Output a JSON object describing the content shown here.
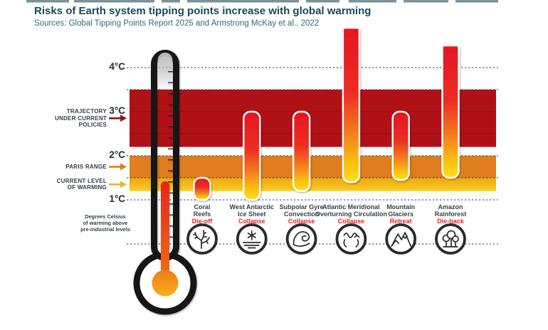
{
  "header": {
    "title": "Risks of Earth system tipping points increase with global warming",
    "subtitle": "Sources: Global Tipping Points Report 2025 and Armstrong McKay et al., 2022"
  },
  "chart_data": {
    "type": "bar",
    "subtype": "floating-range-bars",
    "title": "Risks of Earth system tipping points increase with global warming",
    "subtitle": "Sources: Global Tipping Points Report 2025 and Armstrong McKay et al., 2022",
    "y_axis": {
      "unit": "°C",
      "min": 0,
      "max": 5,
      "ticks": [
        {
          "label": "4°C",
          "value": 4
        },
        {
          "label": "3°C",
          "value": 3
        },
        {
          "label": "2°C",
          "value": 2
        },
        {
          "label": "1°C",
          "value": 1
        }
      ],
      "note": "Degrees Celsius\nof warming above\npre-industrial levels"
    },
    "gridlines_c": [
      4,
      3.5,
      2,
      1.5,
      1,
      0
    ],
    "bands": [
      {
        "id": "trajectory",
        "label": "TRAJECTORY\nUNDER CURRENT\nPOLICIES",
        "range_c": [
          2.2,
          3.5
        ],
        "color": "#b01117",
        "arrow_color": "#9c1016"
      },
      {
        "id": "paris-range",
        "label": "PARIS RANGE",
        "range_c": [
          1.5,
          2.0
        ],
        "color": "#e07d1f",
        "arrow_color": "#e07d1f"
      },
      {
        "id": "current-warming",
        "label": "CURRENT LEVEL\nOF WARMING",
        "range_c": [
          1.2,
          1.5
        ],
        "color": "#f2b118",
        "arrow_color": "#eab62a"
      }
    ],
    "tipping_points": [
      {
        "name": "Coral\nReefs",
        "impact": "Die-off",
        "range_c": [
          1.0,
          1.5
        ],
        "open_top": false,
        "icon": "coral-icon"
      },
      {
        "name": "West Antarctic\nIce Sheet",
        "impact": "Collapse",
        "range_c": [
          1.0,
          3.0
        ],
        "open_top": false,
        "icon": "ice-sheet-icon"
      },
      {
        "name": "Subpolar Gyre\nConvection",
        "impact": "Collapse",
        "range_c": [
          1.2,
          3.0
        ],
        "open_top": false,
        "icon": "wave-icon"
      },
      {
        "name": "Atlantic Meridional\nOverturning Circulation",
        "impact": "Collapse",
        "range_c": [
          1.4,
          4.9
        ],
        "open_top": true,
        "icon": "ocean-circulation-icon"
      },
      {
        "name": "Mountain\nGlaciers",
        "impact": "Retreat",
        "range_c": [
          1.45,
          3.0
        ],
        "open_top": false,
        "icon": "mountain-icon"
      },
      {
        "name": "Amazon\nRainforest",
        "impact": "Die-back",
        "range_c": [
          1.5,
          4.5
        ],
        "open_top": true,
        "icon": "rainforest-icon"
      }
    ],
    "thermometer": {
      "current_level_c": 1.42
    },
    "colors": {
      "bar_gradient": [
        "#e5161f",
        "#ec2d23",
        "#f47d1d",
        "#fbc20f",
        "#ffe01a"
      ],
      "impact_text": "#e52227",
      "band_stripe": "#8f0d12",
      "gridline": "#3b3b3b",
      "thermometer_outline": "#161616",
      "icon_stroke": "#2b2b2b",
      "yellow_band_bottom": "#f8ce1e"
    }
  }
}
